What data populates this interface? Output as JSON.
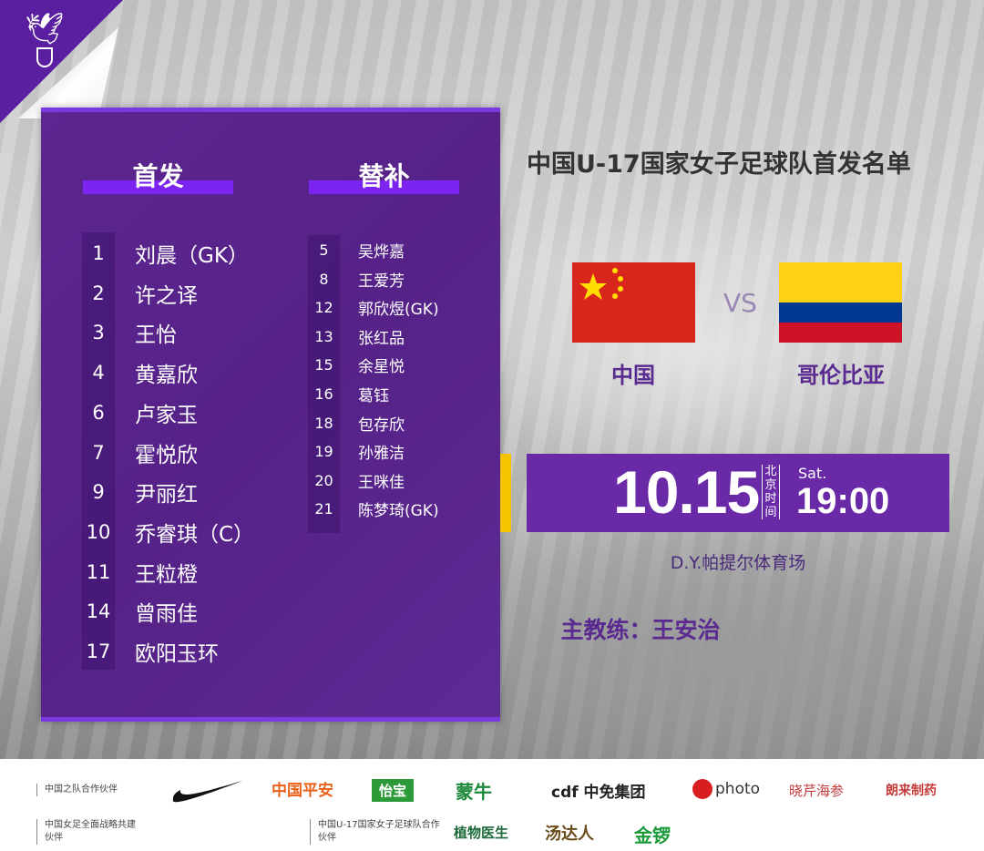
{
  "title": "中国U-17国家女子足球队首发名单",
  "starters": {
    "heading": "首发",
    "players": [
      {
        "number": "1",
        "name": "刘晨（GK）"
      },
      {
        "number": "2",
        "name": "许之译"
      },
      {
        "number": "3",
        "name": "王怡"
      },
      {
        "number": "4",
        "name": "黄嘉欣"
      },
      {
        "number": "6",
        "name": "卢家玉"
      },
      {
        "number": "7",
        "name": "霍悦欣"
      },
      {
        "number": "9",
        "name": "尹丽红"
      },
      {
        "number": "10",
        "name": "乔睿琪（C）"
      },
      {
        "number": "11",
        "name": "王粒橙"
      },
      {
        "number": "14",
        "name": "曾雨佳"
      },
      {
        "number": "17",
        "name": "欧阳玉环"
      }
    ]
  },
  "substitutes": {
    "heading": "替补",
    "players": [
      {
        "number": "5",
        "name": "吴烨嘉"
      },
      {
        "number": "8",
        "name": "王爱芳"
      },
      {
        "number": "12",
        "name": "郭欣煜(GK)"
      },
      {
        "number": "13",
        "name": "张红品"
      },
      {
        "number": "15",
        "name": "余星悦"
      },
      {
        "number": "16",
        "name": "葛钰"
      },
      {
        "number": "18",
        "name": "包存欣"
      },
      {
        "number": "19",
        "name": "孙雅洁"
      },
      {
        "number": "20",
        "name": "王咪佳"
      },
      {
        "number": "21",
        "name": "陈梦琦(GK)"
      }
    ]
  },
  "match": {
    "home": "中国",
    "vs": "VS",
    "away": "哥伦比亚",
    "date": "10.15",
    "timezone": [
      "北",
      "京",
      "时",
      "间"
    ],
    "weekday": "Sat.",
    "time": "19:00",
    "venue": "D.Y.帕提尔体育场",
    "coach": "主教练：王安治"
  },
  "colors": {
    "primary": "#5a2590",
    "accent": "#7d25f0",
    "highlight": "#f5c400"
  },
  "footer": {
    "labels": [
      "中国之队合作伙伴",
      "中国女足全面战略共建伙伴",
      "中国U-17国家女子足球队合作伙伴"
    ],
    "sponsors": [
      "中国平安",
      "怡宝",
      "蒙牛",
      "cdf 中免集团",
      "photo",
      "晓芹海参",
      "朗来制药",
      "植物医生",
      "汤达人",
      "金锣"
    ]
  }
}
